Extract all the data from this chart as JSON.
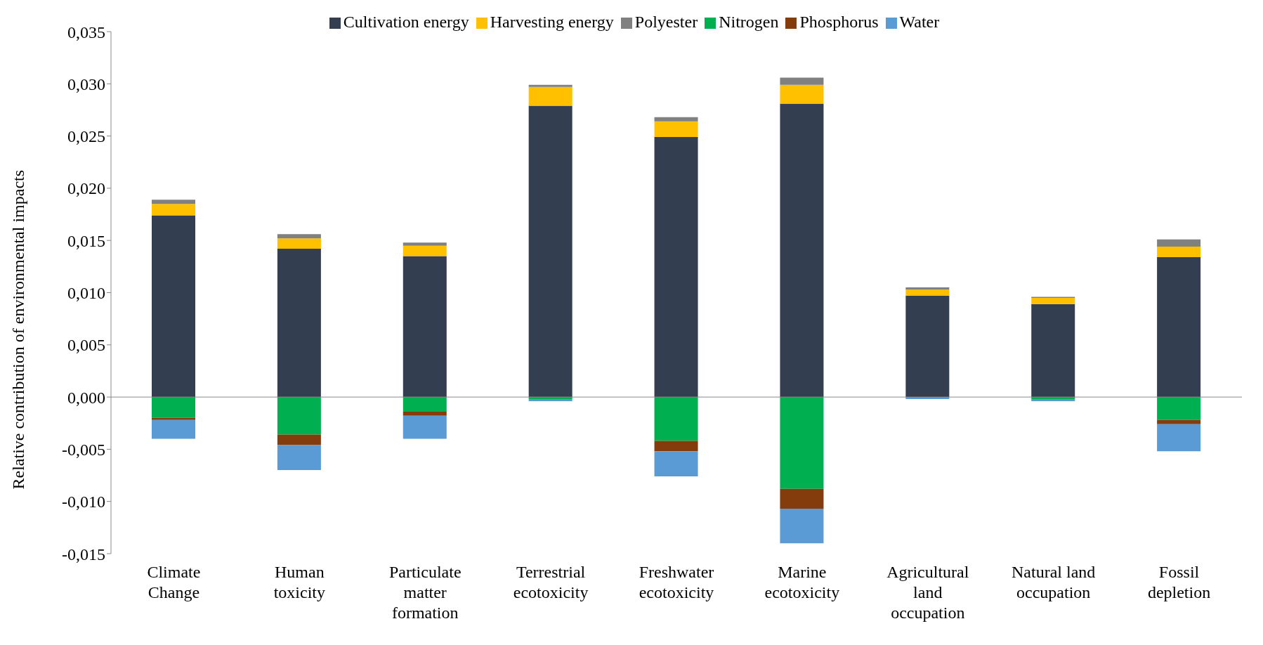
{
  "chart_data": {
    "type": "bar",
    "stacked": true,
    "ylabel": "Relative contribution of environmental impacts",
    "categories": [
      "Climate Change",
      "Human toxicity",
      "Particulate matter formation",
      "Terrestrial ecotoxicity",
      "Freshwater ecotoxicity",
      "Marine ecotoxicity",
      "Agricultural land occupation",
      "Natural land occupation",
      "Fossil depletion"
    ],
    "series": [
      {
        "name": "Cultivation energy",
        "color": "#333f50",
        "values": [
          0.0174,
          0.0142,
          0.0135,
          0.0279,
          0.0249,
          0.0281,
          0.0097,
          0.0089,
          0.0134
        ]
      },
      {
        "name": "Harvesting energy",
        "color": "#ffc000",
        "values": [
          0.0011,
          0.001,
          0.001,
          0.0018,
          0.0015,
          0.0018,
          0.0006,
          0.0006,
          0.001
        ]
      },
      {
        "name": "Polyester",
        "color": "#808080",
        "values": [
          0.0004,
          0.0004,
          0.0003,
          0.0002,
          0.0004,
          0.0007,
          0.0002,
          0.0001,
          0.0007
        ]
      },
      {
        "name": "Nitrogen",
        "color": "#00b050",
        "values": [
          -0.002,
          -0.0036,
          -0.0014,
          -0.0002,
          -0.0042,
          -0.0088,
          0,
          -0.0002,
          -0.0022
        ]
      },
      {
        "name": "Phosphorus",
        "color": "#843c0c",
        "values": [
          -0.0002,
          -0.001,
          -0.0004,
          0,
          -0.001,
          -0.0019,
          0,
          0,
          -0.0004
        ]
      },
      {
        "name": "Water",
        "color": "#5b9bd5",
        "values": [
          -0.0018,
          -0.0024,
          -0.0022,
          -0.0002,
          -0.0024,
          -0.0033,
          -0.0002,
          -0.0002,
          -0.0026
        ]
      }
    ],
    "ylim": [
      -0.015,
      0.035
    ],
    "yticks": [
      {
        "value": -0.015,
        "label": "-0,015"
      },
      {
        "value": -0.01,
        "label": "-0,010"
      },
      {
        "value": -0.005,
        "label": "-0,005"
      },
      {
        "value": 0,
        "label": "0,000"
      },
      {
        "value": 0.005,
        "label": "0,005"
      },
      {
        "value": 0.01,
        "label": "0,010"
      },
      {
        "value": 0.015,
        "label": "0,015"
      },
      {
        "value": 0.02,
        "label": "0,020"
      },
      {
        "value": 0.025,
        "label": "0,025"
      },
      {
        "value": 0.03,
        "label": "0,030"
      },
      {
        "value": 0.035,
        "label": "0,035"
      }
    ],
    "ref_lines": [
      {
        "axis": "y",
        "value": 0,
        "color": "#888888"
      }
    ],
    "grid": false,
    "legend": "top"
  }
}
